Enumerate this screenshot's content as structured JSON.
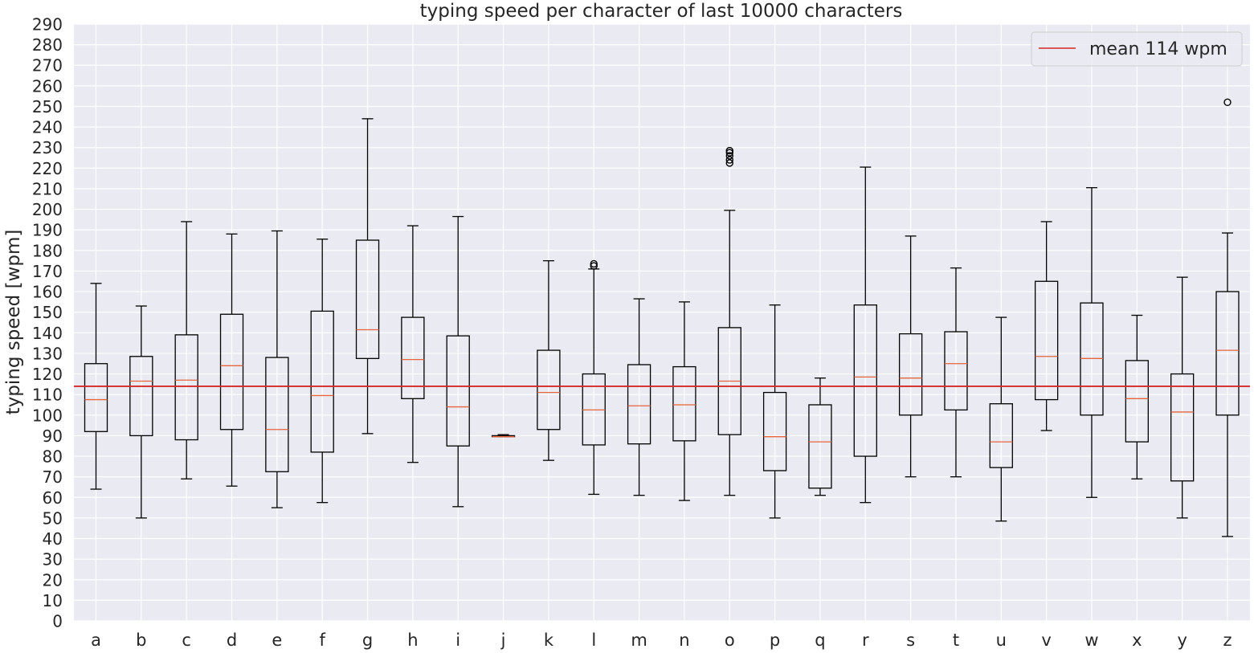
{
  "chart_data": {
    "type": "box",
    "title": "typing speed per character of last 10000 characters",
    "xlabel": "",
    "ylabel": "typing speed [wpm]",
    "ylim": [
      0,
      290
    ],
    "yticks": [
      0,
      10,
      20,
      30,
      40,
      50,
      60,
      70,
      80,
      90,
      100,
      110,
      120,
      130,
      140,
      150,
      160,
      170,
      180,
      190,
      200,
      210,
      220,
      230,
      240,
      250,
      260,
      270,
      280,
      290
    ],
    "grid": true,
    "legend_position": "top-right",
    "reference_line": {
      "label": "mean 114 wpm",
      "value": 114,
      "color": "#d62728"
    },
    "box_color": "#000000",
    "median_color": "#e5653c",
    "background_color": "#eaeaf2",
    "categories": [
      "a",
      "b",
      "c",
      "d",
      "e",
      "f",
      "g",
      "h",
      "i",
      "j",
      "k",
      "l",
      "m",
      "n",
      "o",
      "p",
      "q",
      "r",
      "s",
      "t",
      "u",
      "v",
      "w",
      "x",
      "y",
      "z"
    ],
    "boxes": [
      {
        "whisker_low": 64,
        "q1": 92,
        "median": 107.5,
        "q3": 125,
        "whisker_high": 164,
        "outliers": []
      },
      {
        "whisker_low": 50,
        "q1": 90,
        "median": 116.5,
        "q3": 128.5,
        "whisker_high": 153,
        "outliers": []
      },
      {
        "whisker_low": 69,
        "q1": 88,
        "median": 117,
        "q3": 139,
        "whisker_high": 194,
        "outliers": []
      },
      {
        "whisker_low": 65.5,
        "q1": 93,
        "median": 124,
        "q3": 149,
        "whisker_high": 188,
        "outliers": []
      },
      {
        "whisker_low": 55,
        "q1": 72.5,
        "median": 93,
        "q3": 128,
        "whisker_high": 189.5,
        "outliers": []
      },
      {
        "whisker_low": 57.5,
        "q1": 82,
        "median": 109.5,
        "q3": 150.5,
        "whisker_high": 185.5,
        "outliers": []
      },
      {
        "whisker_low": 91,
        "q1": 127.5,
        "median": 141.5,
        "q3": 185,
        "whisker_high": 244,
        "outliers": []
      },
      {
        "whisker_low": 77,
        "q1": 108,
        "median": 127,
        "q3": 147.5,
        "whisker_high": 192,
        "outliers": []
      },
      {
        "whisker_low": 55.5,
        "q1": 85,
        "median": 104,
        "q3": 138.5,
        "whisker_high": 196.5,
        "outliers": []
      },
      {
        "whisker_low": 89.5,
        "q1": 89.5,
        "median": 89.5,
        "q3": 90,
        "whisker_high": 90.5,
        "outliers": []
      },
      {
        "whisker_low": 78,
        "q1": 93,
        "median": 111,
        "q3": 131.5,
        "whisker_high": 175,
        "outliers": []
      },
      {
        "whisker_low": 61.5,
        "q1": 85.5,
        "median": 102.5,
        "q3": 120,
        "whisker_high": 171,
        "outliers": [
          172.5,
          173.5
        ]
      },
      {
        "whisker_low": 61,
        "q1": 86,
        "median": 104.5,
        "q3": 124.5,
        "whisker_high": 156.5,
        "outliers": []
      },
      {
        "whisker_low": 58.5,
        "q1": 87.5,
        "median": 105,
        "q3": 123.5,
        "whisker_high": 155,
        "outliers": []
      },
      {
        "whisker_low": 61,
        "q1": 90.5,
        "median": 116.5,
        "q3": 142.5,
        "whisker_high": 199.5,
        "outliers": [
          222.5,
          224,
          226,
          227.5,
          228.5
        ]
      },
      {
        "whisker_low": 50,
        "q1": 73,
        "median": 89.5,
        "q3": 111,
        "whisker_high": 153.5,
        "outliers": []
      },
      {
        "whisker_low": 61,
        "q1": 64.5,
        "median": 87,
        "q3": 105,
        "whisker_high": 118,
        "outliers": []
      },
      {
        "whisker_low": 57.5,
        "q1": 80,
        "median": 118.5,
        "q3": 153.5,
        "whisker_high": 220.5,
        "outliers": []
      },
      {
        "whisker_low": 70,
        "q1": 100,
        "median": 118,
        "q3": 139.5,
        "whisker_high": 187,
        "outliers": []
      },
      {
        "whisker_low": 70,
        "q1": 102.5,
        "median": 125,
        "q3": 140.5,
        "whisker_high": 171.5,
        "outliers": []
      },
      {
        "whisker_low": 48.5,
        "q1": 74.5,
        "median": 87,
        "q3": 105.5,
        "whisker_high": 147.5,
        "outliers": []
      },
      {
        "whisker_low": 92.5,
        "q1": 107.5,
        "median": 128.5,
        "q3": 165,
        "whisker_high": 194,
        "outliers": []
      },
      {
        "whisker_low": 60,
        "q1": 100,
        "median": 127.5,
        "q3": 154.5,
        "whisker_high": 210.5,
        "outliers": []
      },
      {
        "whisker_low": 69,
        "q1": 87,
        "median": 108,
        "q3": 126.5,
        "whisker_high": 148.5,
        "outliers": []
      },
      {
        "whisker_low": 50,
        "q1": 68,
        "median": 101.5,
        "q3": 120,
        "whisker_high": 167,
        "outliers": []
      },
      {
        "whisker_low": 41,
        "q1": 100,
        "median": 131.5,
        "q3": 160,
        "whisker_high": 188.5,
        "outliers": [
          252
        ]
      }
    ]
  }
}
